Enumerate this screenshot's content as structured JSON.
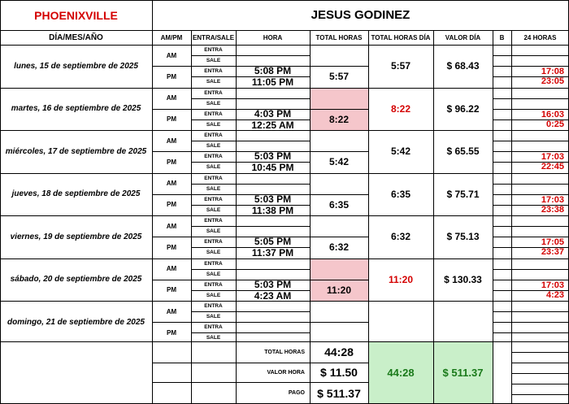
{
  "header": {
    "location": "PHOENIXVILLE",
    "employee": "JESUS GODINEZ"
  },
  "columns": {
    "date": "DÍA/MES/AÑO",
    "ampm": "AM/PM",
    "entry_exit": "ENTRA/SALE",
    "time": "HORA",
    "total_hours": "TOTAL HORAS",
    "total_hours_day": "TOTAL HORAS DÍA",
    "day_value": "VALOR DÍA",
    "b": "B",
    "h24": "24 HORAS"
  },
  "labels": {
    "am": "AM",
    "pm": "PM",
    "entra": "ENTRA",
    "sale": "SALE"
  },
  "days": [
    {
      "date": "lunes, 15 de septiembre de 2025",
      "pm_in": "5:08 PM",
      "pm_out": "11:05 PM",
      "total": "5:57",
      "day_total": "5:57",
      "value": "$ 68.43",
      "in24": "17:08",
      "out24": "23:05",
      "highlight": false
    },
    {
      "date": "martes, 16 de septiembre de 2025",
      "pm_in": "4:03 PM",
      "pm_out": "12:25 AM",
      "total": "8:22",
      "day_total": "8:22",
      "value": "$ 96.22",
      "in24": "16:03",
      "out24": "0:25",
      "highlight": true
    },
    {
      "date": "miércoles, 17 de septiembre de 2025",
      "pm_in": "5:03 PM",
      "pm_out": "10:45 PM",
      "total": "5:42",
      "day_total": "5:42",
      "value": "$ 65.55",
      "in24": "17:03",
      "out24": "22:45",
      "highlight": false
    },
    {
      "date": "jueves, 18 de septiembre de 2025",
      "pm_in": "5:03 PM",
      "pm_out": "11:38 PM",
      "total": "6:35",
      "day_total": "6:35",
      "value": "$ 75.71",
      "in24": "17:03",
      "out24": "23:38",
      "highlight": false
    },
    {
      "date": "viernes, 19 de septiembre de 2025",
      "pm_in": "5:05 PM",
      "pm_out": "11:37 PM",
      "total": "6:32",
      "day_total": "6:32",
      "value": "$ 75.13",
      "in24": "17:05",
      "out24": "23:37",
      "highlight": false
    },
    {
      "date": "sábado, 20 de septiembre de 2025",
      "pm_in": "5:03 PM",
      "pm_out": "4:23 AM",
      "total": "11:20",
      "day_total": "11:20",
      "value": "$ 130.33",
      "in24": "17:03",
      "out24": "4:23",
      "highlight": true
    },
    {
      "date": "domingo, 21 de septiembre de 2025",
      "pm_in": "",
      "pm_out": "",
      "total": "",
      "day_total": "",
      "value": "",
      "in24": "",
      "out24": "",
      "highlight": false
    }
  ],
  "summary": {
    "total_hours_label": "TOTAL HORAS",
    "total_hours": "44:28",
    "hour_value_label": "VALOR HORA",
    "hour_value": "$ 11.50",
    "pay_label": "PAGO",
    "pay": "$ 511.37",
    "grand_hours": "44:28",
    "grand_value": "$ 511.37"
  },
  "colors": {
    "highlight_pink": "#f5c6cb",
    "highlight_green": "#c9efc9",
    "red_text": "#d40000",
    "green_text": "#1a7a1a"
  }
}
